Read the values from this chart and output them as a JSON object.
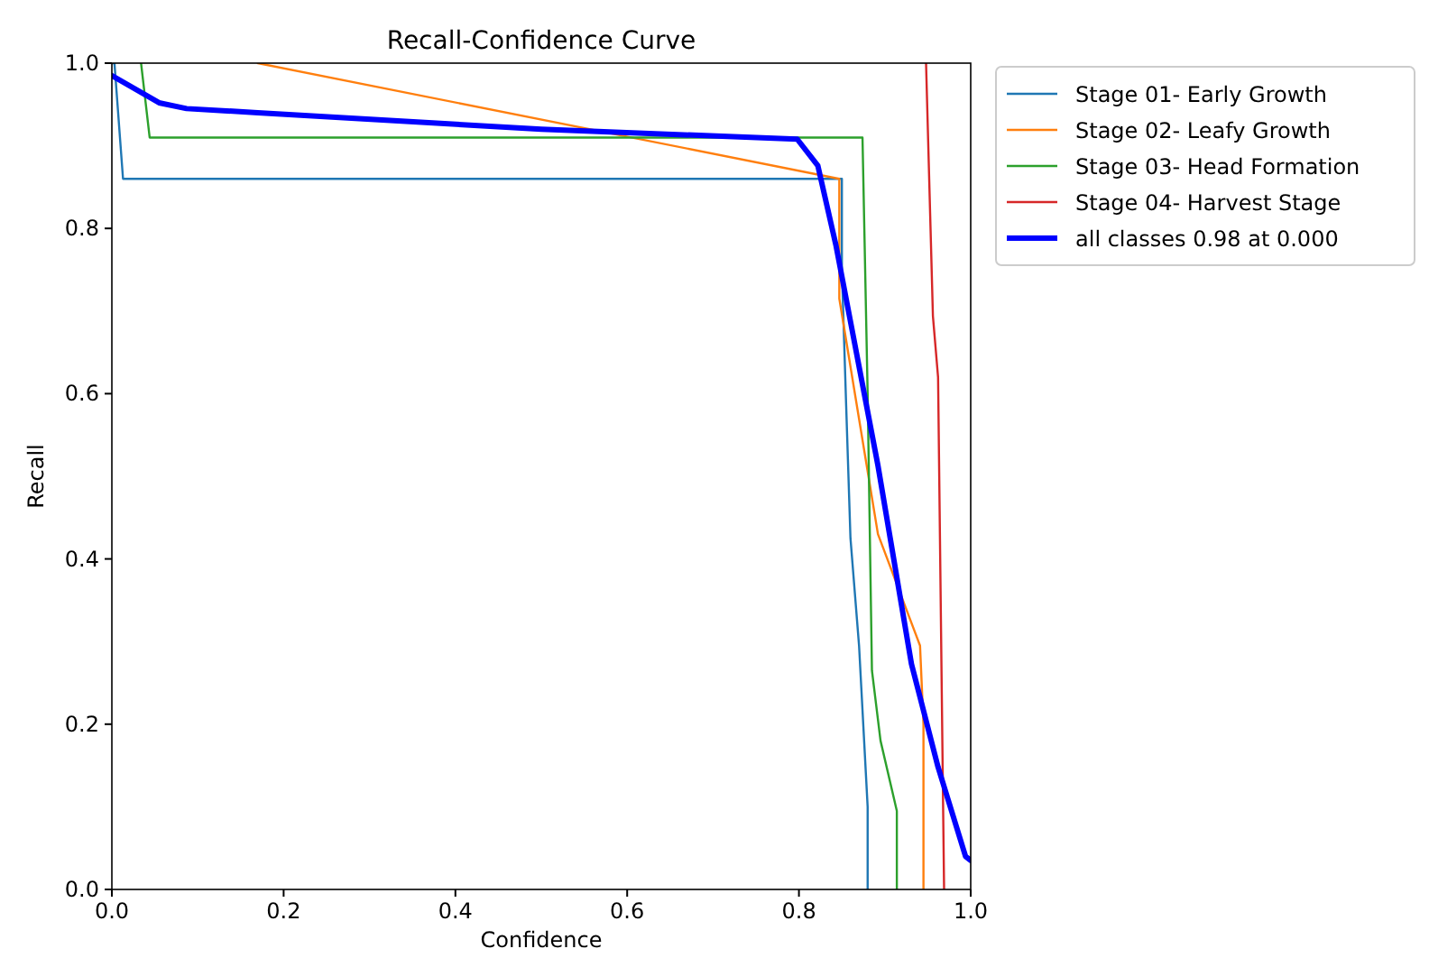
{
  "chart_data": {
    "type": "line",
    "title": "Recall-Confidence Curve",
    "xlabel": "Confidence",
    "ylabel": "Recall",
    "xlim": [
      0,
      1
    ],
    "ylim": [
      0,
      1
    ],
    "xticks": [
      {
        "value": 0,
        "label": "0.0"
      },
      0.2,
      0.4,
      0.6,
      0.8,
      {
        "value": 1,
        "label": "1.0"
      }
    ],
    "yticks": [
      {
        "value": 0,
        "label": "0.0"
      },
      0.2,
      0.4,
      0.6,
      0.8,
      {
        "value": 1,
        "label": "1.0"
      }
    ],
    "grid": false,
    "legend": "top right",
    "marker": "none",
    "line_style": "solid",
    "series": [
      {
        "name": "Stage 01- Early Growth",
        "color": "#1f77b4",
        "x": [
          0,
          0.003,
          0.013,
          0.85,
          0.85,
          0.855,
          0.86,
          0.87,
          0.88,
          0.88
        ],
        "values": [
          1,
          1,
          0.86,
          0.86,
          0.75,
          0.585,
          0.425,
          0.295,
          0.1,
          0
        ]
      },
      {
        "name": "Stage 02- Leafy Growth",
        "color": "#ff7f0e",
        "x": [
          0.17,
          0.847,
          0.847,
          0.892,
          0.941,
          0.945,
          0.945
        ],
        "values": [
          1,
          0.86,
          0.715,
          0.43,
          0.295,
          0.2,
          0
        ]
      },
      {
        "name": "Stage 03- Head Formation",
        "color": "#2ca02c",
        "x": [
          0.034,
          0.044,
          0.874,
          0.88,
          0.885,
          0.895,
          0.914,
          0.914
        ],
        "values": [
          1,
          0.91,
          0.91,
          0.6,
          0.265,
          0.18,
          0.095,
          0
        ]
      },
      {
        "name": "Stage 04- Harvest Stage",
        "color": "#d62728",
        "x": [
          0.948,
          0.956,
          0.962,
          0.969
        ],
        "values": [
          1,
          0.694,
          0.62,
          0
        ]
      },
      {
        "name": "all classes 0.98 at 0.000",
        "color": "#0000ff",
        "x": [
          0,
          0.055,
          0.087,
          0.17,
          0.5,
          0.798,
          0.822,
          0.843,
          0.892,
          0.931,
          0.962,
          0.994,
          1.0
        ],
        "values": [
          0.985,
          0.952,
          0.945,
          0.94,
          0.92,
          0.908,
          0.876,
          0.78,
          0.513,
          0.273,
          0.148,
          0.04,
          0.035
        ]
      }
    ]
  }
}
